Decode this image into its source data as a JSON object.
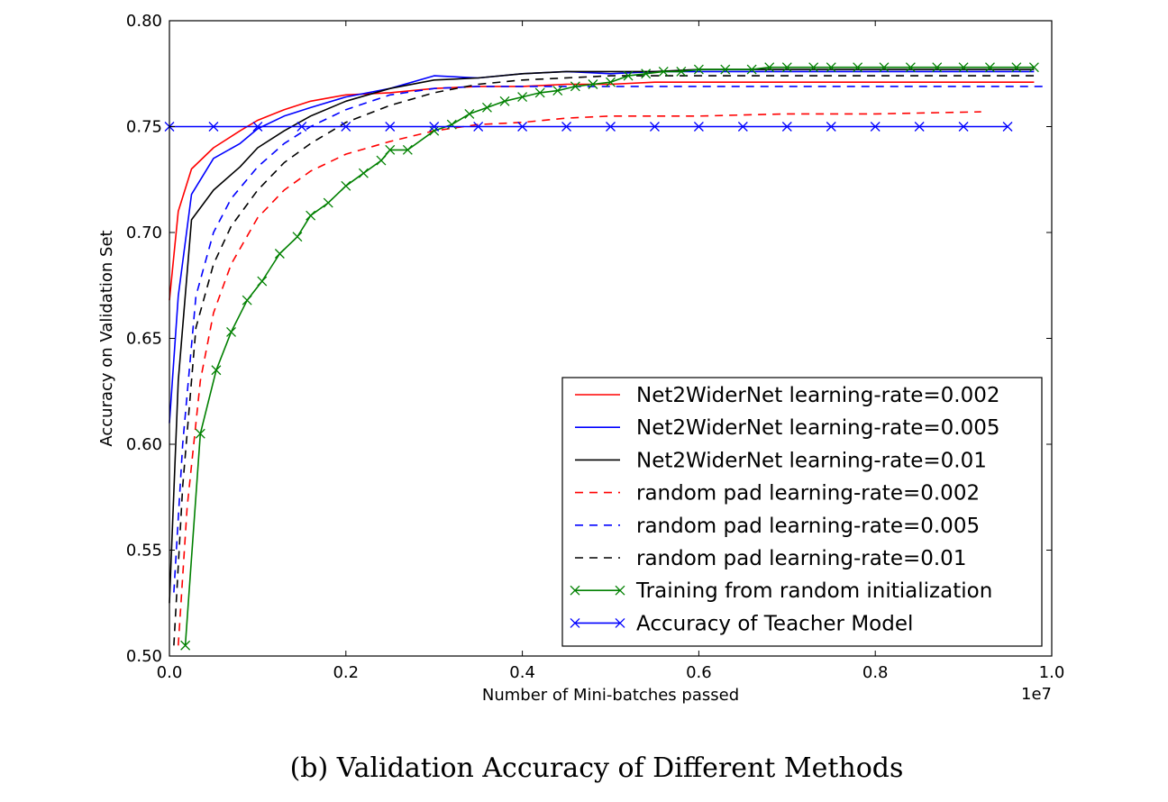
{
  "chart_data": {
    "type": "line",
    "title": "",
    "xlabel": "Number of Mini-batches passed",
    "ylabel": "Accuracy on Validation Set",
    "x_offset_label": "1e7",
    "xlim": [
      0.0,
      1.0
    ],
    "ylim": [
      0.5,
      0.8
    ],
    "xticks": [
      "0.0",
      "0.2",
      "0.4",
      "0.6",
      "0.8",
      "1.0"
    ],
    "yticks": [
      "0.50",
      "0.55",
      "0.60",
      "0.65",
      "0.70",
      "0.75",
      "0.80"
    ],
    "grid": false,
    "legend_position": "lower-right",
    "series": [
      {
        "name": "Net2WiderNet learning-rate=0.002",
        "color": "#ff0000",
        "dash": "solid",
        "marker": "none",
        "x": [
          0.0,
          0.01,
          0.025,
          0.05,
          0.08,
          0.1,
          0.13,
          0.16,
          0.2,
          0.25,
          0.3,
          0.35,
          0.4,
          0.45,
          0.5,
          0.55,
          0.6,
          0.7,
          0.8,
          0.9,
          0.98
        ],
        "y": [
          0.668,
          0.71,
          0.73,
          0.74,
          0.748,
          0.753,
          0.758,
          0.762,
          0.765,
          0.766,
          0.768,
          0.769,
          0.769,
          0.77,
          0.77,
          0.771,
          0.771,
          0.771,
          0.771,
          0.771,
          0.771
        ]
      },
      {
        "name": "Net2WiderNet learning-rate=0.005",
        "color": "#0000ff",
        "dash": "solid",
        "marker": "none",
        "x": [
          0.0,
          0.01,
          0.025,
          0.05,
          0.08,
          0.1,
          0.13,
          0.16,
          0.2,
          0.25,
          0.3,
          0.35,
          0.4,
          0.45,
          0.5,
          0.55,
          0.6,
          0.7,
          0.8,
          0.9,
          0.98
        ],
        "y": [
          0.61,
          0.67,
          0.718,
          0.735,
          0.742,
          0.749,
          0.755,
          0.759,
          0.764,
          0.768,
          0.774,
          0.773,
          0.775,
          0.776,
          0.775,
          0.776,
          0.776,
          0.776,
          0.776,
          0.776,
          0.776
        ]
      },
      {
        "name": "Net2WiderNet learning-rate=0.01",
        "color": "#000000",
        "dash": "solid",
        "marker": "none",
        "x": [
          0.0,
          0.01,
          0.025,
          0.05,
          0.08,
          0.1,
          0.13,
          0.16,
          0.2,
          0.25,
          0.3,
          0.35,
          0.4,
          0.45,
          0.5,
          0.55,
          0.6,
          0.7,
          0.8,
          0.9,
          0.98
        ],
        "y": [
          0.525,
          0.63,
          0.706,
          0.72,
          0.731,
          0.74,
          0.748,
          0.755,
          0.762,
          0.768,
          0.772,
          0.773,
          0.775,
          0.776,
          0.776,
          0.776,
          0.777,
          0.777,
          0.777,
          0.777,
          0.777
        ]
      },
      {
        "name": "random pad learning-rate=0.002",
        "color": "#ff0000",
        "dash": "dashed",
        "marker": "none",
        "x": [
          0.01,
          0.02,
          0.035,
          0.05,
          0.07,
          0.1,
          0.13,
          0.16,
          0.2,
          0.25,
          0.3,
          0.35,
          0.4,
          0.45,
          0.5,
          0.6,
          0.7,
          0.8,
          0.92
        ],
        "y": [
          0.505,
          0.57,
          0.63,
          0.662,
          0.685,
          0.707,
          0.72,
          0.729,
          0.737,
          0.743,
          0.748,
          0.751,
          0.752,
          0.754,
          0.755,
          0.755,
          0.756,
          0.756,
          0.757
        ]
      },
      {
        "name": "random pad learning-rate=0.005",
        "color": "#0000ff",
        "dash": "dashed",
        "marker": "none",
        "x": [
          0.005,
          0.015,
          0.03,
          0.05,
          0.07,
          0.1,
          0.13,
          0.16,
          0.2,
          0.25,
          0.3,
          0.35,
          0.4,
          0.5,
          0.6,
          0.7,
          0.8,
          0.9,
          0.99
        ],
        "y": [
          0.53,
          0.6,
          0.67,
          0.7,
          0.716,
          0.731,
          0.742,
          0.75,
          0.758,
          0.765,
          0.768,
          0.769,
          0.769,
          0.769,
          0.769,
          0.769,
          0.769,
          0.769,
          0.769
        ]
      },
      {
        "name": "random pad learning-rate=0.01",
        "color": "#000000",
        "dash": "dashed",
        "marker": "none",
        "x": [
          0.005,
          0.015,
          0.03,
          0.05,
          0.07,
          0.1,
          0.13,
          0.16,
          0.2,
          0.25,
          0.3,
          0.35,
          0.4,
          0.5,
          0.6,
          0.7,
          0.8,
          0.9,
          0.98
        ],
        "y": [
          0.505,
          0.58,
          0.655,
          0.685,
          0.703,
          0.72,
          0.733,
          0.742,
          0.752,
          0.76,
          0.766,
          0.77,
          0.772,
          0.774,
          0.774,
          0.774,
          0.774,
          0.774,
          0.774
        ]
      },
      {
        "name": "Training from random initialization",
        "color": "#008000",
        "dash": "solid",
        "marker": "x",
        "x": [
          0.018,
          0.035,
          0.053,
          0.07,
          0.088,
          0.105,
          0.125,
          0.145,
          0.16,
          0.18,
          0.2,
          0.22,
          0.24,
          0.25,
          0.27,
          0.3,
          0.32,
          0.34,
          0.36,
          0.38,
          0.4,
          0.42,
          0.44,
          0.46,
          0.48,
          0.5,
          0.52,
          0.54,
          0.56,
          0.58,
          0.6,
          0.63,
          0.66,
          0.68,
          0.7,
          0.73,
          0.75,
          0.78,
          0.81,
          0.84,
          0.87,
          0.9,
          0.93,
          0.96,
          0.98
        ],
        "y": [
          0.505,
          0.605,
          0.635,
          0.653,
          0.668,
          0.677,
          0.69,
          0.698,
          0.708,
          0.714,
          0.722,
          0.728,
          0.734,
          0.739,
          0.739,
          0.748,
          0.751,
          0.756,
          0.759,
          0.762,
          0.764,
          0.766,
          0.767,
          0.769,
          0.77,
          0.771,
          0.774,
          0.775,
          0.776,
          0.776,
          0.777,
          0.777,
          0.777,
          0.778,
          0.778,
          0.778,
          0.778,
          0.778,
          0.778,
          0.778,
          0.778,
          0.778,
          0.778,
          0.778,
          0.778
        ]
      },
      {
        "name": "Accuracy of Teacher Model",
        "color": "#0000ff",
        "dash": "solid",
        "marker": "x",
        "x": [
          0.0,
          0.05,
          0.1,
          0.15,
          0.2,
          0.25,
          0.3,
          0.35,
          0.4,
          0.45,
          0.5,
          0.55,
          0.6,
          0.65,
          0.7,
          0.75,
          0.8,
          0.85,
          0.9,
          0.95
        ],
        "y": [
          0.75,
          0.75,
          0.75,
          0.75,
          0.75,
          0.75,
          0.75,
          0.75,
          0.75,
          0.75,
          0.75,
          0.75,
          0.75,
          0.75,
          0.75,
          0.75,
          0.75,
          0.75,
          0.75,
          0.75
        ]
      }
    ]
  },
  "caption": "(b) Validation Accuracy of Different Methods"
}
